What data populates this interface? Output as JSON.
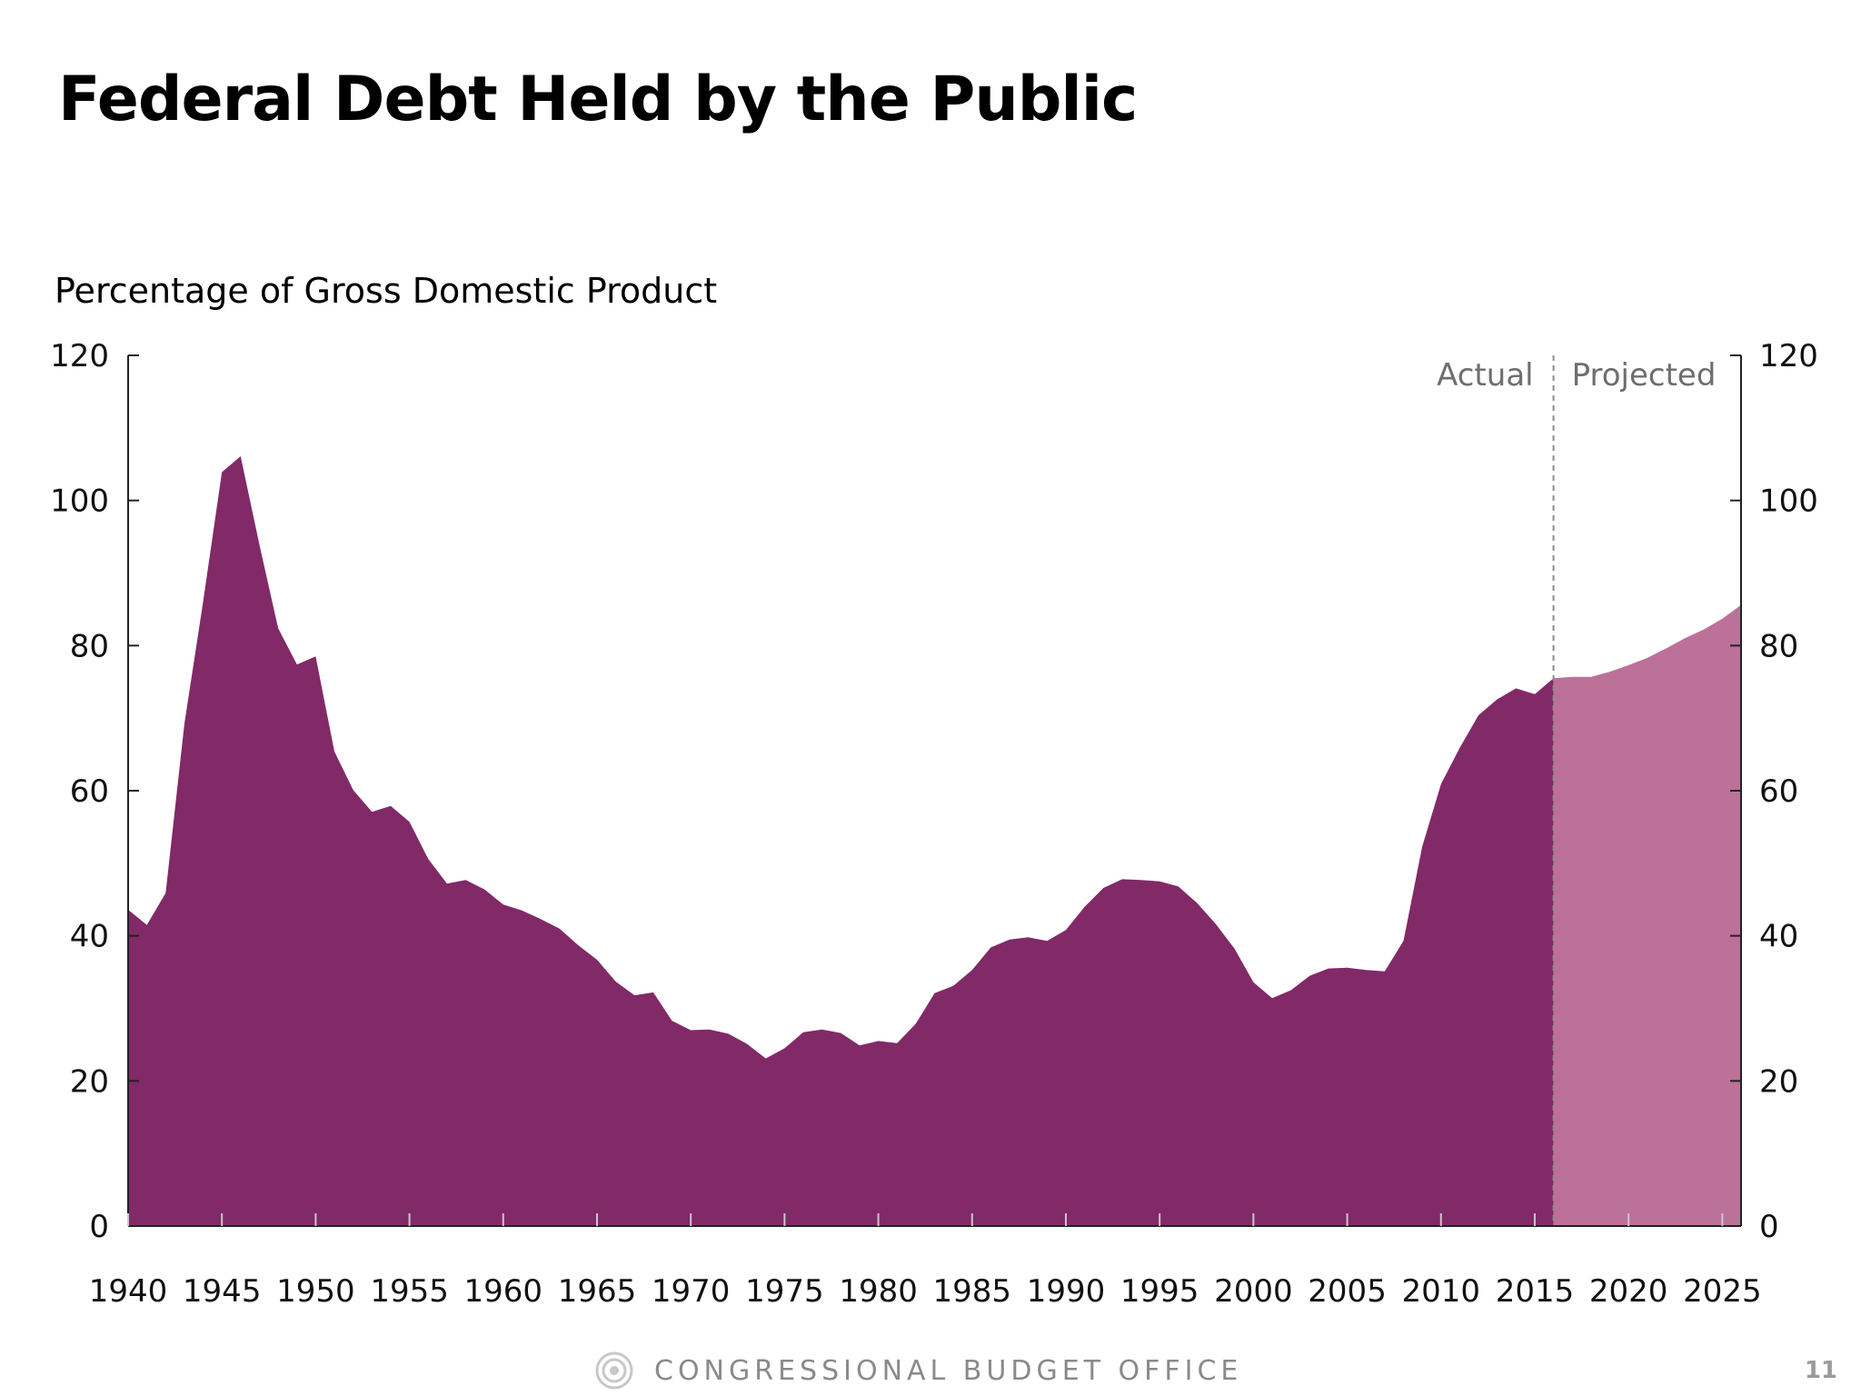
{
  "slide": {
    "title": "Federal Debt Held by the Public",
    "page_number": "11",
    "footer_org": "CONGRESSIONAL BUDGET OFFICE",
    "footer_icon": "cbo-logo-icon"
  },
  "chart_data": {
    "type": "area",
    "title": "Federal Debt Held by the Public",
    "ylabel": "Percentage of Gross Domestic Product",
    "xlabel": "",
    "xlim": [
      1940,
      2026
    ],
    "ylim": [
      0,
      120
    ],
    "x_ticks": [
      1940,
      1945,
      1950,
      1955,
      1960,
      1965,
      1970,
      1975,
      1980,
      1985,
      1990,
      1995,
      2000,
      2005,
      2010,
      2015,
      2020,
      2025
    ],
    "y_ticks": [
      0,
      20,
      40,
      60,
      80,
      100,
      120
    ],
    "grid": false,
    "divider_year": 2016,
    "annotations": {
      "actual": "Actual",
      "projected": "Projected"
    },
    "colors": {
      "actual": "#822968",
      "projected": "#bc7199",
      "divider": "#8c8c8c"
    },
    "series": [
      {
        "name": "Actual",
        "x": [
          1940,
          1941,
          1942,
          1943,
          1944,
          1945,
          1946,
          1947,
          1948,
          1949,
          1950,
          1951,
          1952,
          1953,
          1954,
          1955,
          1956,
          1957,
          1958,
          1959,
          1960,
          1961,
          1962,
          1963,
          1964,
          1965,
          1966,
          1967,
          1968,
          1969,
          1970,
          1971,
          1972,
          1973,
          1974,
          1975,
          1976,
          1977,
          1978,
          1979,
          1980,
          1981,
          1982,
          1983,
          1984,
          1985,
          1986,
          1987,
          1988,
          1989,
          1990,
          1991,
          1992,
          1993,
          1994,
          1995,
          1996,
          1997,
          1998,
          1999,
          2000,
          2001,
          2002,
          2003,
          2004,
          2005,
          2006,
          2007,
          2008,
          2009,
          2010,
          2011,
          2012,
          2013,
          2014,
          2015,
          2016
        ],
        "y": [
          43.6,
          41.5,
          45.9,
          69.2,
          86.1,
          103.9,
          106.1,
          93.9,
          82.4,
          77.4,
          78.5,
          65.4,
          60.1,
          57.1,
          57.9,
          55.7,
          50.6,
          47.2,
          47.7,
          46.4,
          44.3,
          43.5,
          42.3,
          41.0,
          38.7,
          36.7,
          33.7,
          31.8,
          32.2,
          28.3,
          27.0,
          27.1,
          26.5,
          25.1,
          23.1,
          24.5,
          26.7,
          27.1,
          26.6,
          24.9,
          25.5,
          25.2,
          27.9,
          32.1,
          33.1,
          35.3,
          38.4,
          39.5,
          39.8,
          39.3,
          40.8,
          44.0,
          46.6,
          47.8,
          47.7,
          47.5,
          46.8,
          44.5,
          41.6,
          38.2,
          33.6,
          31.4,
          32.5,
          34.5,
          35.5,
          35.6,
          35.3,
          35.1,
          39.3,
          52.3,
          60.9,
          65.9,
          70.4,
          72.6,
          74.1,
          73.3,
          75.5
        ]
      },
      {
        "name": "Projected",
        "x": [
          2016,
          2017,
          2018,
          2019,
          2020,
          2021,
          2022,
          2023,
          2024,
          2025,
          2026
        ],
        "y": [
          75.5,
          75.7,
          75.7,
          76.4,
          77.3,
          78.3,
          79.6,
          81.0,
          82.2,
          83.7,
          85.6
        ]
      }
    ]
  }
}
